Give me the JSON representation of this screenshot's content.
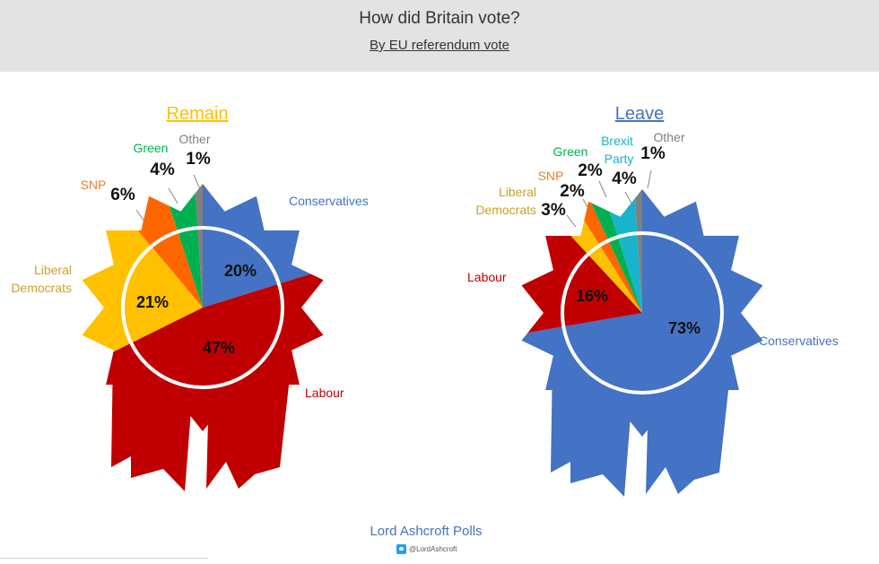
{
  "header": {
    "title": "How did Britain vote?",
    "subtitle": "By EU referendum vote"
  },
  "footer": {
    "brand": "Lord Ashcroft Polls",
    "handle": "@LordAshcroft",
    "handle_icon": "twitter-bird-icon"
  },
  "chart_data": [
    {
      "type": "pie",
      "title": "Remain",
      "title_color": "#ffc000",
      "slices": [
        {
          "name": "Conservatives",
          "value": 20,
          "label": "20%",
          "color": "#4472c4",
          "name_color": "#4472c4"
        },
        {
          "name": "Labour",
          "value": 47,
          "label": "47%",
          "color": "#c00000",
          "name_color": "#c00000"
        },
        {
          "name": "Liberal Democrats",
          "value": 21,
          "label": "21%",
          "color": "#ffc000",
          "name_color": "#c9a227"
        },
        {
          "name": "SNP",
          "value": 6,
          "label": "6%",
          "color": "#ff6600",
          "name_color": "#ed7d31"
        },
        {
          "name": "Green",
          "value": 4,
          "label": "4%",
          "color": "#00b050",
          "name_color": "#00b050"
        },
        {
          "name": "Other",
          "value": 1,
          "label": "1%",
          "color": "#7f7f7f",
          "name_color": "#7f7f7f"
        }
      ]
    },
    {
      "type": "pie",
      "title": "Leave",
      "title_color": "#4472c4",
      "slices": [
        {
          "name": "Conservatives",
          "value": 73,
          "label": "73%",
          "color": "#4472c4",
          "name_color": "#4472c4"
        },
        {
          "name": "Labour",
          "value": 16,
          "label": "16%",
          "color": "#c00000",
          "name_color": "#c00000"
        },
        {
          "name": "Liberal Democrats",
          "value": 3,
          "label": "3%",
          "color": "#ffc000",
          "name_color": "#c9a227"
        },
        {
          "name": "SNP",
          "value": 2,
          "label": "2%",
          "color": "#ff6600",
          "name_color": "#ed7d31"
        },
        {
          "name": "Green",
          "value": 2,
          "label": "2%",
          "color": "#00b050",
          "name_color": "#00b050"
        },
        {
          "name": "Brexit Party",
          "value": 4,
          "label": "4%",
          "color": "#17b4cc",
          "name_color": "#17b4cc"
        },
        {
          "name": "Other",
          "value": 1,
          "label": "1%",
          "color": "#7f7f7f",
          "name_color": "#7f7f7f"
        }
      ]
    }
  ]
}
